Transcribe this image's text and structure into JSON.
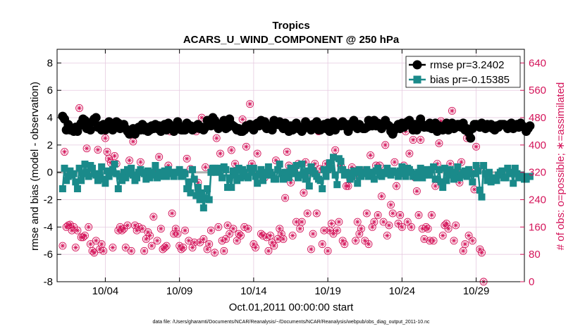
{
  "colors": {
    "rmse": "#000000",
    "bias": "#1a8a8a",
    "obs": "#d4145a",
    "zero_line": "#b0b0b0",
    "grid": "#e6cbe0"
  },
  "chart_data": {
    "type": "line",
    "title": "Tropics",
    "subtitle": "ACARS_U_WIND_COMPONENT @ 250 hPa",
    "xlabel": "Oct.01,2011 00:00:00 start",
    "ylabel_left": "rmse and bias (model - observation)",
    "ylabel_right": "# of obs: o=possible; ∗=assimilated",
    "footer": "data file: /Users/gharamti/Documents/NCAR/Reanalysis/~/Documents/NCAR/Reanalysis/webpub/obs_diag_output_2011-10.nc",
    "x_ticks": [
      {
        "x": 3.5,
        "label": "10/04"
      },
      {
        "x": 8.5,
        "label": "10/09"
      },
      {
        "x": 13.5,
        "label": "10/14"
      },
      {
        "x": 18.5,
        "label": "10/19"
      },
      {
        "x": 23.5,
        "label": "10/24"
      },
      {
        "x": 28.5,
        "label": "10/29"
      }
    ],
    "xlim": [
      0.25,
      31.75
    ],
    "ylim_left": [
      -8,
      9
    ],
    "yticks_left": [
      "-8",
      "-6",
      "-4",
      "-2",
      "0",
      "2",
      "4",
      "6",
      "8"
    ],
    "ylim_right": [
      0,
      680
    ],
    "yticks_right": [
      "0",
      "80",
      "160",
      "240",
      "320",
      "400",
      "480",
      "560",
      "640"
    ],
    "grid": true,
    "legend_position": "top-right",
    "series": [
      {
        "name": "rmse",
        "legend_label": "rmse pr=3.2402",
        "marker": "circle",
        "values": [
          4.1,
          3.9,
          3.1,
          3.5,
          3.1,
          3.2,
          3.0,
          3.3,
          3.0,
          3.4,
          3.6,
          3.9,
          3.8,
          3.2,
          3.4,
          3.1,
          3.7,
          3.9,
          4.0,
          3.3,
          3.4,
          3.1,
          3.5,
          3.1,
          3.4,
          3.7,
          3.3,
          3.1,
          3.5,
          3.7,
          3.6,
          3.2,
          3.3,
          3.5,
          3.2,
          3.0,
          2.8,
          3.0,
          3.2,
          2.8,
          3.1,
          3.3,
          3.1,
          3.5,
          3.1,
          3.3,
          3.0,
          3.1,
          3.4,
          3.2,
          3.5,
          3.2,
          3.4,
          3.0,
          3.3,
          3.5,
          3.1,
          3.6,
          3.2,
          3.4,
          3.0,
          3.2,
          3.7,
          3.4,
          3.1,
          3.1,
          3.1,
          3.6,
          3.4,
          3.4,
          3.1,
          3.2,
          3.4,
          3.5,
          3.2,
          3.3,
          3.1,
          3.3,
          3.8,
          3.6,
          3.4,
          4.0,
          3.8,
          3.6,
          3.2,
          3.4,
          3.5,
          3.8,
          3.2,
          3.3,
          3.9,
          3.5,
          3.4,
          3.3,
          3.1,
          3.2,
          3.0,
          3.0,
          3.1,
          3.4,
          3.3,
          3.5,
          3.4,
          3.1,
          3.5,
          3.6,
          3.4,
          3.8,
          3.5,
          3.7,
          3.2,
          3.4,
          3.4,
          3.1,
          3.8,
          3.5,
          3.5,
          3.7,
          3.4,
          3.2,
          3.6,
          3.2,
          3.0,
          3.4,
          3.1,
          3.2,
          3.6,
          3.2,
          3.3,
          3.0,
          3.2,
          3.7,
          3.5,
          3.3,
          3.1,
          3.5,
          3.4,
          3.7,
          3.1,
          3.1,
          3.3,
          3.5,
          3.2,
          3.6,
          3.0,
          3.3,
          3.7,
          3.1,
          3.5,
          3.4,
          3.4,
          3.7,
          3.4,
          3.5,
          3.0,
          3.3,
          3.6,
          3.8,
          3.4,
          3.2,
          3.5,
          3.3,
          3.2,
          3.2,
          3.3,
          3.8,
          3.4,
          3.4,
          3.8,
          3.4,
          3.6,
          3.4,
          3.2,
          3.5,
          3.8,
          3.5,
          3.4,
          3.0,
          2.8,
          3.1,
          3.3,
          3.5,
          3.2,
          3.6,
          3.3,
          3.5,
          3.7,
          3.8,
          3.4,
          3.1,
          3.5,
          3.1,
          3.4,
          3.9,
          3.5,
          3.3,
          3.4,
          3.3,
          3.6,
          3.2,
          3.5,
          3.6,
          3.0,
          3.4,
          3.2,
          3.1,
          3.3,
          3.6,
          3.1,
          3.5,
          3.6,
          3.2,
          3.3,
          3.5,
          3.5,
          3.3,
          3.6,
          3.1,
          3.2,
          2.9,
          2.5,
          3.2,
          3.5,
          3.5,
          3.4,
          3.3,
          3.6,
          3.4,
          3.2,
          3.5,
          3.3,
          3.5,
          3.2,
          3.1,
          3.4,
          3.3,
          3.5,
          3.5,
          3.5,
          3.4,
          3.2,
          3.5,
          3.6,
          3.2,
          3.3,
          3.5,
          3.3,
          3.6,
          3.4,
          3.3,
          3.0,
          3.2,
          3.4
        ]
      },
      {
        "name": "bias",
        "legend_label": "bias pr=-0.15385",
        "marker": "square",
        "values": [
          -1.2,
          0.3,
          -0.6,
          -0.3,
          0.1,
          -0.2,
          -0.1,
          -0.7,
          -1.2,
          0.3,
          -0.6,
          -0.1,
          0.6,
          0.0,
          -0.3,
          0.5,
          0.3,
          -0.1,
          -0.2,
          -0.6,
          -0.1,
          0.4,
          -0.5,
          -0.8,
          0.1,
          -0.3,
          0.0,
          0.2,
          0.6,
          -0.1,
          -1.2,
          -0.3,
          -0.6,
          0.0,
          -0.4,
          0.2,
          -0.1,
          0.3,
          -0.2,
          -0.6,
          -0.4,
          0.0,
          0.2,
          0.0,
          -0.1,
          -0.5,
          0.1,
          -0.4,
          0.0,
          -0.2,
          0.5,
          -0.4,
          0.0,
          -0.3,
          0.0,
          0.1,
          -0.3,
          0.2,
          -0.1,
          0.0,
          -0.3,
          0.0,
          0.0,
          0.2,
          -0.3,
          0.0,
          -0.1,
          -1.2,
          -0.7,
          -1.5,
          0.2,
          -0.5,
          -1.7,
          -1.1,
          -2.0,
          -1.5,
          -2.6,
          -1.9,
          -1.2,
          -2.0,
          0.0,
          0.3,
          0.3,
          0.0,
          0.1,
          0.3,
          -0.4,
          0.4,
          0.2,
          -1.1,
          -0.4,
          -1.1,
          0.1,
          -0.2,
          -0.6,
          0.3,
          -0.4,
          0.2,
          0.0,
          -0.3,
          -0.4,
          0.3,
          0.0,
          0.3,
          -0.3,
          -0.8,
          -0.1,
          0.2,
          -0.6,
          0.0,
          -0.2,
          0.4,
          0.0,
          -0.2,
          -0.5,
          -0.5,
          0.2,
          0.6,
          -0.1,
          -0.5,
          0.0,
          0.0,
          -0.4,
          0.3,
          0.1,
          -0.1,
          0.5,
          -0.4,
          -0.2,
          0.6,
          0.0,
          -0.5,
          0.1,
          -1.0,
          0.4,
          0.1,
          -0.1,
          -0.3,
          -0.5,
          -0.6,
          -1.2,
          0.2,
          -0.3,
          0.2,
          0.7,
          0.3,
          1.1,
          -0.2,
          -0.9,
          1.0,
          0.8,
          0.2,
          -0.2,
          0.0,
          -0.1,
          -0.5,
          -0.3,
          0.1,
          0.0,
          -0.8,
          0.2,
          -0.3,
          0.0,
          -0.1,
          0.2,
          -0.3,
          0.0,
          0.0,
          -0.5,
          0.1,
          0.3,
          -0.2,
          -0.3,
          0.0,
          -0.1,
          0.3,
          0.0,
          -0.2,
          0.1,
          0.0,
          0.0,
          -0.3,
          0.1,
          0.4,
          -0.1,
          -0.3,
          0.3,
          0.2,
          0.0,
          -0.3,
          -0.1,
          -0.4,
          0.0,
          0.3,
          -0.4,
          -0.2,
          0.2,
          0.0,
          -0.2,
          0.2,
          0.4,
          -0.5,
          -0.5,
          0.2,
          -0.7,
          -1.1,
          0.3,
          -0.6,
          -0.2,
          0.2,
          -0.1,
          -0.5,
          0.0,
          0.4,
          -0.4,
          -0.2,
          0.0,
          0.1,
          -0.3,
          0.2,
          -0.1,
          -0.7,
          -0.1,
          0.5,
          0.1,
          -1.3,
          -1.8,
          0.5,
          -0.1,
          -0.6,
          0.0,
          -0.7,
          -0.4,
          -0.4,
          -0.6,
          -0.2,
          0.0,
          0.1,
          -0.4,
          -0.4,
          0.3,
          0.0,
          -0.1,
          -0.8,
          0.3,
          -0.1,
          -0.4,
          -0.2,
          -0.4,
          -0.5,
          -0.5,
          -0.3,
          -0.3
        ]
      },
      {
        "name": "obs_possible",
        "marker": "open-circle",
        "values": [
          105,
          380,
          160,
          165,
          167,
          150,
          160,
          100,
          150,
          508,
          130,
          130,
          135,
          390,
          160,
          110,
          90,
          85,
          120,
          386,
          95,
          110,
          90,
          420,
          380,
          360,
          348,
          100,
          368,
          345,
          150,
          160,
          150,
          155,
          100,
          165,
          355,
          90,
          410,
          165,
          150,
          160,
          350,
          155,
          90,
          125,
          145,
          135,
          105,
          190,
          320,
          120,
          365,
          155,
          95,
          100,
          105,
          340,
          440,
          200,
          140,
          155,
          140,
          105,
          95,
          100,
          150,
          360,
          120,
          330,
          100,
          115,
          440,
          290,
          115,
          480,
          125,
          335,
          95,
          110,
          150,
          460,
          85,
          420,
          160,
          375,
          120,
          90,
          125,
          165,
          140,
          385,
          155,
          345,
          120,
          140,
          135,
          475,
          160,
          395,
          155,
          520,
          345,
          110,
          100,
          375,
          315,
          140,
          135,
          305,
          130,
          90,
          135,
          115,
          105,
          355,
          125,
          155,
          140,
          125,
          245,
          380,
          340,
          290,
          135,
          325,
          175,
          345,
          155,
          175,
          260,
          350,
          200,
          320,
          95,
          140,
          345,
          200,
          440,
          330,
          110,
          150,
          345,
          90,
          150,
          170,
          140,
          385,
          150,
          175,
          340,
          120,
          110,
          280,
          280,
          300,
          335,
          310,
          120,
          175,
          140,
          155,
          325,
          120,
          200,
          110,
          370,
          160,
          175,
          340,
          195,
          340,
          250,
          175,
          400,
          135,
          165,
          225,
          200,
          350,
          280,
          170,
          195,
          160,
          340,
          440,
          175,
          375,
          160,
          415,
          305,
          265,
          195,
          415,
          155,
          125,
          160,
          155,
          120,
          195,
          120,
          280,
          345,
          405,
          470,
          135,
          165,
          170,
          155,
          345,
          500,
          120,
          165,
          315,
          290,
          350,
          90,
          110,
          420,
          135,
          320,
          120,
          270,
          395,
          330,
          95,
          85,
          0
        ]
      },
      {
        "name": "obs_assimilated",
        "marker": "asterisk",
        "values": [
          105,
          380,
          160,
          165,
          167,
          150,
          160,
          100,
          150,
          508,
          130,
          130,
          135,
          390,
          160,
          110,
          90,
          85,
          120,
          386,
          95,
          110,
          90,
          420,
          380,
          360,
          348,
          100,
          368,
          345,
          150,
          160,
          150,
          155,
          100,
          165,
          355,
          90,
          410,
          165,
          150,
          160,
          350,
          155,
          90,
          125,
          145,
          135,
          105,
          190,
          320,
          120,
          365,
          155,
          95,
          100,
          105,
          340,
          440,
          200,
          140,
          155,
          140,
          105,
          95,
          100,
          150,
          360,
          120,
          330,
          100,
          115,
          440,
          290,
          115,
          480,
          125,
          335,
          95,
          110,
          150,
          460,
          85,
          420,
          160,
          375,
          120,
          90,
          125,
          165,
          140,
          385,
          155,
          345,
          120,
          140,
          135,
          475,
          160,
          395,
          155,
          520,
          345,
          110,
          100,
          375,
          315,
          140,
          135,
          305,
          130,
          90,
          135,
          115,
          105,
          355,
          125,
          155,
          140,
          125,
          245,
          380,
          340,
          290,
          135,
          325,
          175,
          345,
          155,
          175,
          260,
          350,
          200,
          320,
          95,
          140,
          345,
          200,
          440,
          330,
          110,
          150,
          345,
          90,
          150,
          170,
          140,
          385,
          150,
          175,
          340,
          120,
          110,
          280,
          280,
          300,
          335,
          310,
          120,
          175,
          140,
          155,
          325,
          120,
          200,
          110,
          370,
          160,
          175,
          340,
          195,
          340,
          250,
          175,
          400,
          135,
          165,
          225,
          200,
          350,
          280,
          170,
          195,
          160,
          340,
          440,
          175,
          375,
          160,
          415,
          305,
          265,
          195,
          415,
          155,
          125,
          160,
          155,
          120,
          195,
          120,
          280,
          345,
          405,
          470,
          135,
          165,
          170,
          155,
          345,
          500,
          120,
          165,
          315,
          290,
          350,
          90,
          110,
          420,
          135,
          320,
          120,
          270,
          395,
          330,
          95,
          85,
          0
        ]
      }
    ]
  }
}
